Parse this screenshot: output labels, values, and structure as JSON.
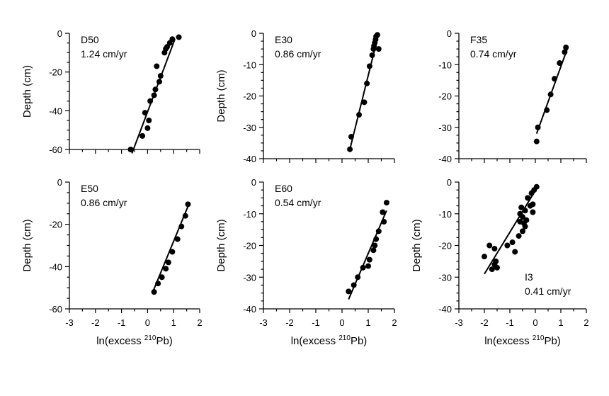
{
  "chart_data": [
    {
      "type": "scatter",
      "panel_label": "D50",
      "rate_label": "1.24 cm/yr",
      "xlabel": "",
      "xlabel_sup": "",
      "xlabel_tail": "",
      "ylabel": "Depth (cm)",
      "xlim": [
        -3,
        2
      ],
      "ylim": [
        -60,
        0
      ],
      "xticks": [],
      "xtick_labels": [],
      "yticks": [
        0,
        -20,
        -40,
        -60
      ],
      "ytick_labels": [
        "0",
        "-20",
        "-40",
        "-60"
      ],
      "points": {
        "x": [
          1.2,
          0.95,
          0.85,
          0.75,
          0.7,
          0.65,
          0.5,
          0.45,
          0.35,
          0.3,
          0.25,
          0.1,
          0.05,
          0.0,
          -0.1,
          -0.2,
          -0.65
        ],
        "y": [
          -2,
          -3,
          -5,
          -7,
          -8,
          -10,
          -22,
          -25,
          -17,
          -29,
          -32,
          -35,
          -45,
          -49,
          -41,
          -53,
          -60
        ]
      },
      "fit_line": {
        "x": [
          -0.6,
          1.05
        ],
        "y": [
          -62,
          -3
        ]
      }
    },
    {
      "type": "scatter",
      "panel_label": "E30",
      "rate_label": "0.86 cm/yr",
      "xlabel": "",
      "xlabel_sup": "",
      "xlabel_tail": "",
      "ylabel": "Depth (cm)",
      "xlim": [
        -3,
        2
      ],
      "ylim": [
        -40,
        0
      ],
      "xticks": [],
      "xtick_labels": [],
      "yticks": [
        0,
        -10,
        -20,
        -30,
        -40
      ],
      "ytick_labels": [
        "0",
        "-10",
        "-20",
        "-30",
        "-40"
      ],
      "points": {
        "x": [
          1.35,
          1.3,
          1.28,
          1.25,
          1.22,
          1.2,
          1.4,
          1.15,
          1.05,
          0.95,
          0.85,
          0.65,
          0.35,
          0.3
        ],
        "y": [
          -0.5,
          -1,
          -2,
          -3,
          -4,
          -5,
          -5,
          -7,
          -10.5,
          -16,
          -22,
          -26,
          -33,
          -37
        ]
      },
      "fit_line": {
        "x": [
          0.3,
          1.4
        ],
        "y": [
          -37,
          0
        ]
      }
    },
    {
      "type": "scatter",
      "panel_label": "F35",
      "rate_label": "0.74 cm/yr",
      "xlabel": "",
      "xlabel_sup": "",
      "xlabel_tail": "",
      "ylabel": "",
      "xlim": [
        -3,
        2
      ],
      "ylim": [
        -40,
        0
      ],
      "xticks": [],
      "xtick_labels": [],
      "yticks": [
        0,
        -10,
        -20,
        -30,
        -40
      ],
      "ytick_labels": [
        "0",
        "-10",
        "-20",
        "-30",
        "-40"
      ],
      "points": {
        "x": [
          1.2,
          1.15,
          0.95,
          0.75,
          0.6,
          0.45,
          0.1,
          0.05
        ],
        "y": [
          -4.5,
          -6,
          -9.5,
          -14.5,
          -19.5,
          -24.5,
          -30,
          -34.5
        ]
      },
      "fit_line": {
        "x": [
          0.05,
          1.25
        ],
        "y": [
          -32,
          -5
        ]
      }
    },
    {
      "type": "scatter",
      "panel_label": "E50",
      "rate_label": "0.86 cm/yr",
      "xlabel": "ln(excess ",
      "xlabel_sup": "210",
      "xlabel_tail": "Pb)",
      "ylabel": "Depth (cm)",
      "xlim": [
        -3,
        2
      ],
      "ylim": [
        -60,
        0
      ],
      "xticks": [
        -3,
        -2,
        -1,
        0,
        1,
        2
      ],
      "xtick_labels": [
        "-3",
        "-2",
        "-1",
        "0",
        "1",
        "2"
      ],
      "yticks": [
        0,
        -20,
        -40,
        -60
      ],
      "ytick_labels": [
        "0",
        "-20",
        "-40",
        "-60"
      ],
      "points": {
        "x": [
          1.55,
          1.45,
          1.3,
          1.15,
          0.95,
          0.8,
          0.7,
          0.55,
          0.4,
          0.25
        ],
        "y": [
          -10.5,
          -16,
          -21,
          -27,
          -33,
          -38,
          -41,
          -45,
          -48,
          -52
        ]
      },
      "fit_line": {
        "x": [
          0.2,
          1.6
        ],
        "y": [
          -52,
          -10
        ]
      }
    },
    {
      "type": "scatter",
      "panel_label": "E60",
      "rate_label": "0.54 cm/yr",
      "xlabel": "ln(excess ",
      "xlabel_sup": "210",
      "xlabel_tail": "Pb)",
      "ylabel": "Depth (cm)",
      "xlim": [
        -3,
        2
      ],
      "ylim": [
        -40,
        0
      ],
      "xticks": [
        -3,
        -2,
        -1,
        0,
        1,
        2
      ],
      "xtick_labels": [
        "-3",
        "-2",
        "-1",
        "0",
        "1",
        "2"
      ],
      "yticks": [
        0,
        -10,
        -20,
        -30,
        -40
      ],
      "ytick_labels": [
        "0",
        "-10",
        "-20",
        "-30",
        "-40"
      ],
      "points": {
        "x": [
          1.7,
          1.55,
          1.6,
          1.4,
          1.3,
          1.25,
          1.2,
          1.05,
          1.0,
          0.8,
          0.6,
          0.45,
          0.25
        ],
        "y": [
          -6.5,
          -9.5,
          -12.5,
          -15.5,
          -18,
          -20,
          -21.5,
          -24.5,
          -26.5,
          -27,
          -30,
          -32.5,
          -34.5
        ]
      },
      "fit_line": {
        "x": [
          0.25,
          1.7
        ],
        "y": [
          -37,
          -9
        ]
      }
    },
    {
      "type": "scatter",
      "panel_label": "I3",
      "rate_label": "0.41 cm/yr",
      "xlabel": "ln(excess ",
      "xlabel_sup": "210",
      "xlabel_tail": "Pb)",
      "ylabel": "Depth (cm)",
      "xlim": [
        -3,
        2
      ],
      "ylim": [
        -40,
        0
      ],
      "xticks": [
        -3,
        -2,
        -1,
        0,
        1,
        2
      ],
      "xtick_labels": [
        "-3",
        "-2",
        "-1",
        "0",
        "1",
        "2"
      ],
      "yticks": [
        0,
        -10,
        -20,
        -30,
        -40
      ],
      "ytick_labels": [
        "0",
        "-10",
        "-20",
        "-30",
        "-40"
      ],
      "points": {
        "x": [
          0.05,
          -0.05,
          -0.15,
          -0.3,
          -0.1,
          -0.2,
          -0.4,
          -0.1,
          -0.55,
          -0.6,
          -0.5,
          -0.35,
          -0.6,
          -0.45,
          -0.4,
          -0.5,
          -0.65,
          -0.9,
          -0.8,
          -1.1,
          -1.8,
          -1.6,
          -1.55,
          -1.6,
          -1.7,
          -1.5,
          -2.0
        ],
        "y": [
          -1.5,
          -2.5,
          -3.5,
          -5,
          -7,
          -7.5,
          -9,
          -9.5,
          -8,
          -10,
          -11,
          -12,
          -12.5,
          -13,
          -14,
          -15.5,
          -17,
          -19,
          -22,
          -20,
          -20,
          -21,
          -25,
          -26,
          -27.5,
          -27,
          -23.5
        ]
      },
      "fit_line": {
        "x": [
          -2.0,
          0.05
        ],
        "y": [
          -29,
          -2
        ]
      }
    }
  ]
}
